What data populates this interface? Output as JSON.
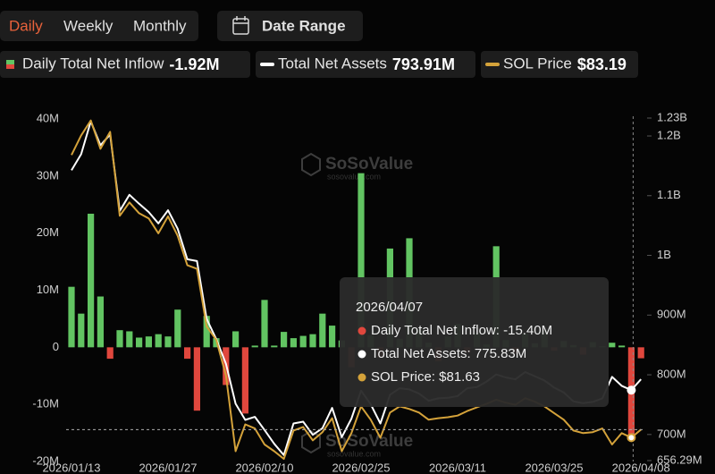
{
  "controls": {
    "tabs": [
      "Daily",
      "Weekly",
      "Monthly"
    ],
    "date_range": "Date Range"
  },
  "chart_data": {
    "type": "bar-line",
    "watermark": "SoSoValue",
    "watermark_sub": "sosovalue.com",
    "categories": [
      "2026/01/13",
      null,
      null,
      null,
      null,
      null,
      null,
      null,
      null,
      null,
      "2026/01/27",
      null,
      null,
      null,
      null,
      null,
      null,
      null,
      null,
      null,
      "2026/02/10",
      null,
      null,
      null,
      null,
      null,
      null,
      null,
      null,
      null,
      "2026/02/25",
      null,
      null,
      null,
      null,
      null,
      null,
      null,
      null,
      null,
      "2026/03/11",
      null,
      null,
      null,
      null,
      null,
      null,
      null,
      null,
      null,
      "2026/03/25",
      null,
      null,
      null,
      null,
      null,
      null,
      null,
      null,
      "2026/04/08"
    ],
    "ylim": [
      -20,
      40
    ],
    "yticks": [
      {
        "value": 40,
        "label": "40M"
      },
      {
        "value": 30,
        "label": "30M"
      },
      {
        "value": 20,
        "label": "20M"
      },
      {
        "value": 10,
        "label": "10M"
      },
      0,
      {
        "value": -10,
        "label": "-10M"
      },
      {
        "value": -20,
        "label": "-20M"
      }
    ],
    "y2lim": [
      656.29,
      1230
    ],
    "y2ticks": [
      {
        "value": 1230,
        "label": "1.23B"
      },
      {
        "value": 1200,
        "label": "1.2B"
      },
      {
        "value": 1100,
        "label": "1.1B"
      },
      {
        "value": 1000,
        "label": "1B"
      },
      {
        "value": 900,
        "label": "900M"
      },
      {
        "value": 800,
        "label": "800M"
      },
      {
        "value": 700,
        "label": "700M"
      },
      {
        "value": 656.29,
        "label": "656.29M"
      }
    ],
    "y3lim": [
      77,
      143.5
    ],
    "grid": false,
    "series": [
      {
        "name": "Daily Total Net Inflow",
        "legend_value": "-1.92M",
        "type": "bar",
        "color": "#62c462",
        "negative_color": "#e0473d",
        "values": [
          10.6,
          5.9,
          23.4,
          8.9,
          -2.0,
          3.0,
          2.8,
          1.7,
          1.9,
          2.3,
          1.9,
          6.6,
          -2.0,
          -11.1,
          5.5,
          1.6,
          -6.6,
          2.8,
          -11.6,
          0.3,
          8.3,
          0.3,
          2.7,
          1.6,
          2.0,
          2.3,
          5.9,
          3.8,
          1.2,
          -3.5,
          30.5,
          2.1,
          -1.8,
          17.3,
          1.5,
          19.1,
          3.2,
          0.8,
          -2.4,
          1.9,
          4.1,
          -0.9,
          2.6,
          0.5,
          17.7,
          1.3,
          -1.1,
          2.4,
          0.7,
          3.0,
          -0.6,
          1.1,
          0.4,
          -1.3,
          0.9,
          0.2,
          0.8,
          0.3,
          -15.4,
          -1.92
        ]
      },
      {
        "name": "Total Net Assets",
        "legend_value": "793.91M",
        "type": "line",
        "axis": "y2",
        "color": "#ffffff",
        "values": [
          1144,
          1171,
          1226,
          1186,
          1204,
          1076,
          1103,
          1088,
          1074,
          1055,
          1077,
          1046,
          995,
          992,
          895,
          861,
          820,
          753,
          726,
          731,
          709,
          686,
          667,
          720,
          723,
          701,
          712,
          746,
          697,
          728,
          775,
          752,
          720,
          768,
          779,
          777,
          770,
          758,
          762,
          763,
          766,
          779,
          781,
          790,
          802,
          797,
          794,
          806,
          799,
          792,
          780,
          772,
          757,
          754,
          756,
          762,
          798,
          783,
          775.83,
          793.91
        ]
      },
      {
        "name": "SOL Price",
        "legend_value": "$83.19",
        "type": "line",
        "axis": "y3",
        "color": "#d4a23a",
        "values": [
          136.5,
          140.3,
          143.2,
          137.7,
          141.0,
          124.7,
          127.3,
          125.2,
          124.2,
          121.3,
          124.6,
          120.8,
          115.1,
          114.4,
          103.2,
          100.6,
          93.7,
          79.0,
          84.2,
          83.4,
          80.3,
          79.0,
          77.5,
          83.0,
          83.7,
          81.1,
          82.7,
          85.4,
          79.0,
          82.5,
          87.7,
          85.1,
          81.6,
          86.5,
          87.7,
          87.2,
          86.5,
          85.1,
          85.4,
          85.6,
          85.9,
          86.8,
          87.5,
          88.2,
          89.0,
          88.4,
          88.0,
          89.3,
          88.6,
          87.7,
          86.4,
          85.1,
          83.0,
          82.5,
          82.7,
          83.4,
          80.3,
          82.5,
          81.63,
          83.19
        ]
      }
    ],
    "tooltip": {
      "date": "2026/04/07",
      "items": [
        "Daily Total Net Inflow: -15.40M",
        "Total Net Assets: 775.83M",
        "SOL Price: $81.63"
      ]
    }
  }
}
